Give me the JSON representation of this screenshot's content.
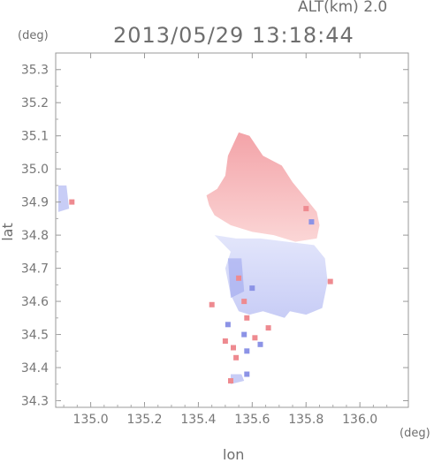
{
  "header": {
    "altitude": "ALT(km) 2.0",
    "timestamp": "2013/05/29 13:18:44"
  },
  "chart_data": {
    "type": "heatmap",
    "xlabel": "lon",
    "ylabel": "lat",
    "x_unit": "(deg)",
    "y_unit": "(deg)",
    "xlim": [
      134.87,
      136.18
    ],
    "ylim": [
      34.28,
      35.35
    ],
    "x_ticks": [
      "135.0",
      "135.2",
      "135.4",
      "135.6",
      "135.8",
      "136.0"
    ],
    "x_tick_values": [
      135.0,
      135.2,
      135.4,
      135.6,
      135.8,
      136.0
    ],
    "y_ticks": [
      "34.3",
      "34.4",
      "34.5",
      "34.6",
      "34.7",
      "34.8",
      "34.9",
      "35.0",
      "35.1",
      "35.2",
      "35.3"
    ],
    "y_tick_values": [
      34.3,
      34.4,
      34.5,
      34.6,
      34.7,
      34.8,
      34.9,
      35.0,
      35.1,
      35.2,
      35.3
    ],
    "colors": {
      "positive": "#f3a3a8",
      "positive_light": "#fbd6d6",
      "negative": "#c8cdf6",
      "negative_dark": "#9fa6ee",
      "axis": "#999999"
    },
    "regions": [
      {
        "name": "north-cell",
        "sign": "positive",
        "points": [
          [
            135.55,
            35.11
          ],
          [
            135.59,
            35.1
          ],
          [
            135.64,
            35.04
          ],
          [
            135.71,
            35.01
          ],
          [
            135.75,
            34.96
          ],
          [
            135.8,
            34.91
          ],
          [
            135.84,
            34.87
          ],
          [
            135.85,
            34.83
          ],
          [
            135.84,
            34.79
          ],
          [
            135.76,
            34.78
          ],
          [
            135.68,
            34.8
          ],
          [
            135.6,
            34.81
          ],
          [
            135.52,
            34.83
          ],
          [
            135.46,
            34.86
          ],
          [
            135.44,
            34.89
          ],
          [
            135.43,
            34.92
          ],
          [
            135.47,
            34.94
          ],
          [
            135.5,
            34.98
          ],
          [
            135.51,
            35.04
          ]
        ]
      },
      {
        "name": "south-cell",
        "sign": "negative",
        "points": [
          [
            135.46,
            34.8
          ],
          [
            135.54,
            34.79
          ],
          [
            135.63,
            34.79
          ],
          [
            135.73,
            34.78
          ],
          [
            135.83,
            34.77
          ],
          [
            135.87,
            34.73
          ],
          [
            135.88,
            34.66
          ],
          [
            135.86,
            34.58
          ],
          [
            135.8,
            34.56
          ],
          [
            135.74,
            34.57
          ],
          [
            135.72,
            34.55
          ],
          [
            135.64,
            34.57
          ],
          [
            135.59,
            34.56
          ],
          [
            135.55,
            34.57
          ],
          [
            135.52,
            34.62
          ],
          [
            135.5,
            34.7
          ],
          [
            135.52,
            34.75
          ]
        ]
      },
      {
        "name": "west-patch",
        "sign": "negative",
        "points": [
          [
            134.88,
            34.95
          ],
          [
            134.91,
            34.95
          ],
          [
            134.92,
            34.88
          ],
          [
            134.88,
            34.87
          ]
        ]
      },
      {
        "name": "south-strip",
        "sign": "negative",
        "points": [
          [
            135.52,
            34.38
          ],
          [
            135.56,
            34.38
          ],
          [
            135.57,
            34.36
          ],
          [
            135.52,
            34.35
          ]
        ]
      }
    ],
    "speckles": [
      {
        "lon": 135.5,
        "lat": 34.48,
        "sign": "positive"
      },
      {
        "lon": 135.53,
        "lat": 34.46,
        "sign": "positive"
      },
      {
        "lon": 135.57,
        "lat": 34.5,
        "sign": "negative"
      },
      {
        "lon": 135.61,
        "lat": 34.49,
        "sign": "positive"
      },
      {
        "lon": 135.63,
        "lat": 34.47,
        "sign": "negative"
      },
      {
        "lon": 135.66,
        "lat": 34.52,
        "sign": "positive"
      },
      {
        "lon": 135.54,
        "lat": 34.43,
        "sign": "positive"
      },
      {
        "lon": 135.58,
        "lat": 34.45,
        "sign": "negative"
      },
      {
        "lon": 135.52,
        "lat": 34.36,
        "sign": "positive"
      },
      {
        "lon": 135.58,
        "lat": 34.38,
        "sign": "negative"
      },
      {
        "lon": 135.8,
        "lat": 34.88,
        "sign": "positive"
      },
      {
        "lon": 135.82,
        "lat": 34.84,
        "sign": "negative"
      },
      {
        "lon": 135.55,
        "lat": 34.67,
        "sign": "positive"
      },
      {
        "lon": 135.57,
        "lat": 34.6,
        "sign": "positive"
      },
      {
        "lon": 135.6,
        "lat": 34.64,
        "sign": "negative"
      },
      {
        "lon": 135.45,
        "lat": 34.59,
        "sign": "positive"
      },
      {
        "lon": 135.58,
        "lat": 34.55,
        "sign": "positive"
      },
      {
        "lon": 135.89,
        "lat": 34.66,
        "sign": "positive"
      },
      {
        "lon": 134.93,
        "lat": 34.9,
        "sign": "positive"
      },
      {
        "lon": 135.51,
        "lat": 34.53,
        "sign": "negative"
      }
    ]
  }
}
